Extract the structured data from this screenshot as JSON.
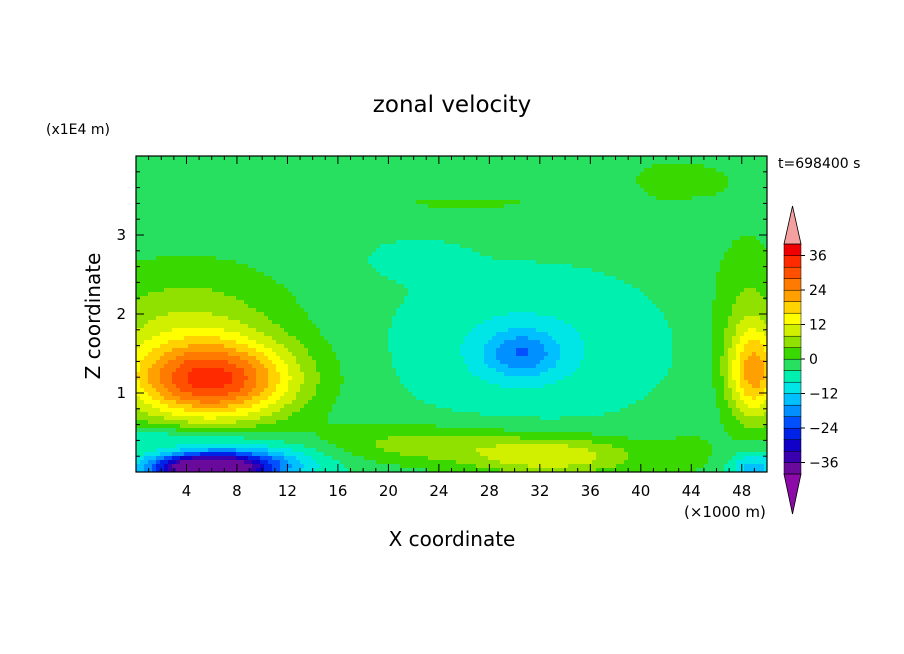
{
  "chart_data": {
    "type": "heatmap",
    "title": "zonal velocity",
    "xlabel": "X coordinate",
    "ylabel": "Z coordinate",
    "x_unit": "(×1000 m)",
    "y_unit": "(x1E4 m)",
    "time_label": "t=698400 s",
    "xlim": [
      0,
      50
    ],
    "ylim": [
      0,
      4
    ],
    "xticks": [
      4,
      8,
      12,
      16,
      20,
      24,
      28,
      32,
      36,
      40,
      44,
      48
    ],
    "yticks": [
      1,
      2,
      3
    ],
    "colorbar": {
      "min": -40,
      "max": 40,
      "step": 4,
      "tick_labels": [
        "36",
        "24",
        "12",
        "0",
        "−12",
        "−24",
        "−36"
      ],
      "tick_values": [
        36,
        24,
        12,
        0,
        -12,
        -24,
        -36
      ],
      "colors": [
        "#6a0a9c",
        "#3a00b0",
        "#1000c8",
        "#0022e6",
        "#0050ff",
        "#0090ff",
        "#00c0ff",
        "#00e6e6",
        "#00f0b0",
        "#28e060",
        "#38d800",
        "#90e000",
        "#d0f000",
        "#ffff00",
        "#ffd200",
        "#ffa000",
        "#ff7a00",
        "#ff5000",
        "#ff2a00",
        "#f00000"
      ],
      "over_color": "#f4a0a0",
      "under_color": "#8c0aa8"
    },
    "features": [
      {
        "x": 5.5,
        "z": 0.05,
        "sx": 4.5,
        "sz": 0.18,
        "value": -40
      },
      {
        "x": 9,
        "z": 0.12,
        "sx": 6,
        "sz": 0.25,
        "value": -14
      },
      {
        "x": 6,
        "z": 1.15,
        "sx": 6.5,
        "sz": 0.5,
        "value": 32
      },
      {
        "x": 4,
        "z": 1.8,
        "sx": 8,
        "sz": 0.8,
        "value": 10
      },
      {
        "x": 49,
        "z": 1.25,
        "sx": 2.2,
        "sz": 0.6,
        "value": 24
      },
      {
        "x": 48.5,
        "z": 2.2,
        "sx": 3,
        "sz": 0.8,
        "value": 6
      },
      {
        "x": 49,
        "z": 0.05,
        "sx": 2,
        "sz": 0.2,
        "value": -12
      },
      {
        "x": 30.5,
        "z": 1.5,
        "sx": 3,
        "sz": 0.3,
        "value": -12
      },
      {
        "x": 31,
        "z": 1.6,
        "sx": 10,
        "sz": 0.9,
        "value": -6
      },
      {
        "x": 22,
        "z": 2.7,
        "sx": 4,
        "sz": 0.25,
        "value": -3
      },
      {
        "x": 33,
        "z": 0.2,
        "sx": 7,
        "sz": 0.25,
        "value": 14
      },
      {
        "x": 22,
        "z": 0.35,
        "sx": 8,
        "sz": 0.25,
        "value": 8
      },
      {
        "x": 44,
        "z": 0.25,
        "sx": 3,
        "sz": 0.35,
        "value": 3
      },
      {
        "x": 3,
        "z": 0.45,
        "sx": 6,
        "sz": 0.12,
        "value": -6
      },
      {
        "x": 43,
        "z": 3.7,
        "sx": 8,
        "sz": 0.5,
        "value": 3
      },
      {
        "x": 4,
        "z": 3.7,
        "sx": 5,
        "sz": 0.4,
        "value": 2
      },
      {
        "x": 26,
        "z": 3.4,
        "sx": 10,
        "sz": 0.12,
        "value": 3
      }
    ],
    "background_value": -2.5
  }
}
